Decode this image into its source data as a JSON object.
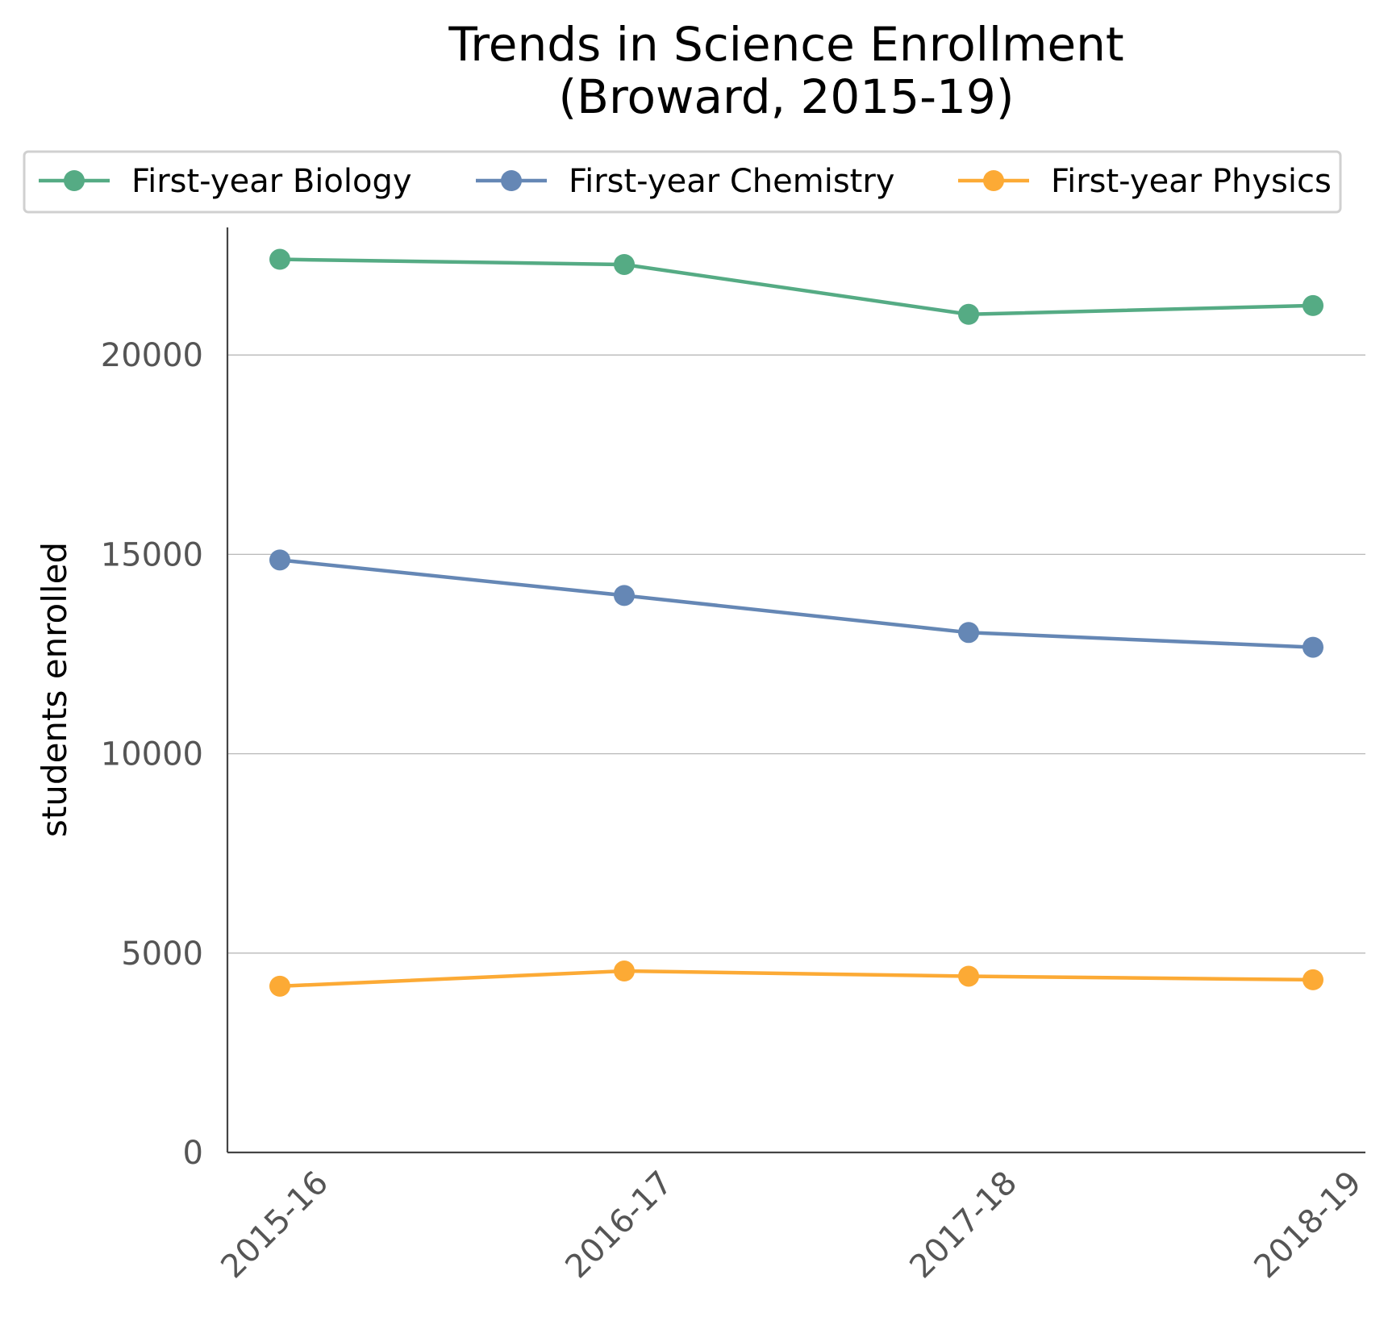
{
  "chart_data": {
    "type": "line",
    "title": [
      "Trends in Science Enrollment",
      "(Broward, 2015-19)"
    ],
    "xlabel": "",
    "ylabel": "students enrolled",
    "categories": [
      "2015-16",
      "2016-17",
      "2017-18",
      "2018-19"
    ],
    "ylim": [
      0,
      23200
    ],
    "yticks": [
      0,
      5000,
      10000,
      15000,
      20000
    ],
    "grid": "horizontal",
    "legend_position": "top",
    "series": [
      {
        "name": "First-year Biology",
        "color": "#55ab84",
        "values": [
          22400,
          22270,
          21020,
          21240
        ]
      },
      {
        "name": "First-year Chemistry",
        "color": "#6587b5",
        "values": [
          14860,
          13970,
          13040,
          12670
        ]
      },
      {
        "name": "First-year Physics",
        "color": "#fcaa35",
        "values": [
          4170,
          4550,
          4420,
          4330
        ]
      }
    ]
  }
}
